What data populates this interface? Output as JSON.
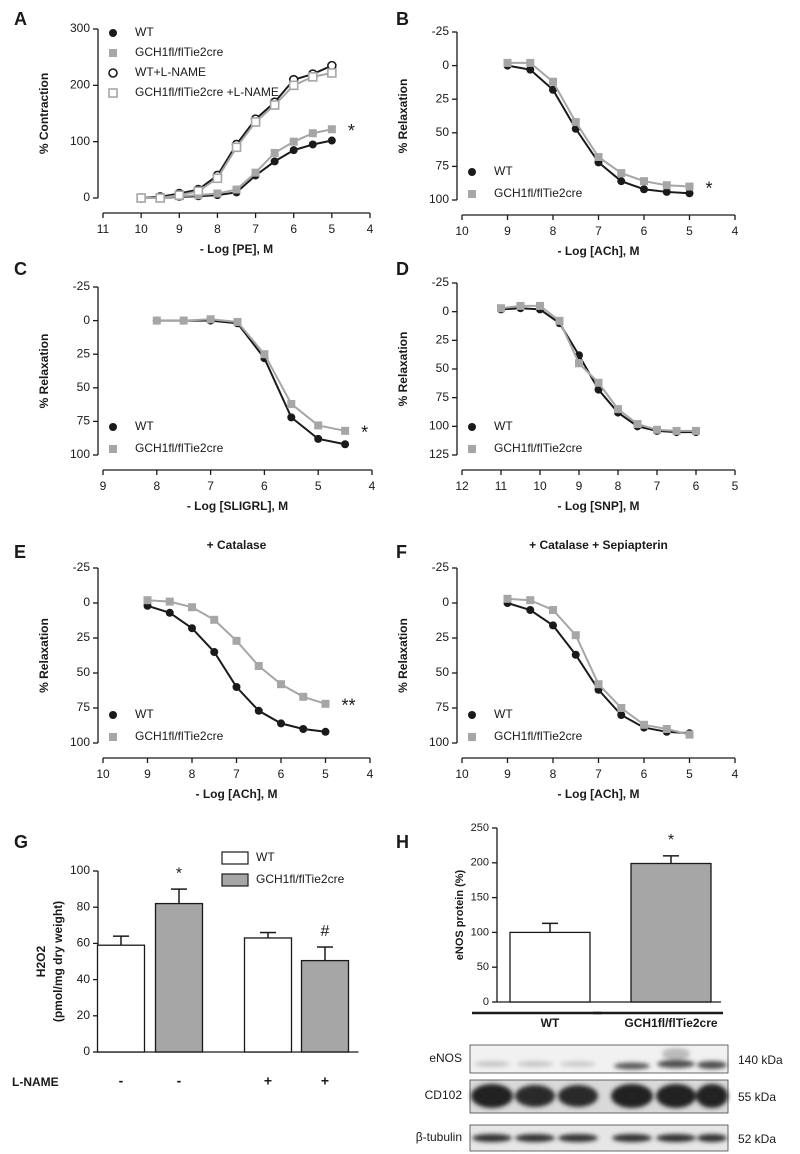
{
  "chart_data": [
    {
      "panel": "A",
      "type": "line",
      "xlabel": "- Log [PE], M",
      "ylabel": "% Contraction",
      "xlim": [
        11,
        4
      ],
      "xticks": [
        11,
        10,
        9,
        8,
        7,
        6,
        5,
        4
      ],
      "ylim": [
        0,
        300
      ],
      "yticks": [
        0,
        100,
        200,
        300
      ],
      "legend": "upper left",
      "annotation": "*",
      "x": [
        10,
        9.5,
        9,
        8.5,
        8,
        7.5,
        7,
        6.5,
        6,
        5.5,
        5
      ],
      "series": [
        {
          "name": "WT",
          "color": "#1a1a1a",
          "marker": "circle",
          "filled": true,
          "values": [
            0,
            0,
            2,
            3,
            5,
            10,
            40,
            65,
            85,
            95,
            102
          ]
        },
        {
          "name": "GCH1fl/flTie2cre",
          "color": "#a6a6a6",
          "marker": "square",
          "filled": true,
          "values": [
            0,
            0,
            3,
            5,
            8,
            15,
            45,
            80,
            100,
            115,
            122
          ]
        },
        {
          "name": "WT+L-NAME",
          "color": "#1a1a1a",
          "marker": "circle",
          "filled": false,
          "values": [
            0,
            2,
            8,
            15,
            40,
            95,
            140,
            170,
            210,
            220,
            235
          ]
        },
        {
          "name": "GCH1fl/flTie2cre +L-NAME",
          "color": "#a6a6a6",
          "marker": "square",
          "filled": false,
          "values": [
            0,
            0,
            5,
            12,
            35,
            90,
            135,
            165,
            200,
            215,
            222
          ]
        }
      ]
    },
    {
      "panel": "B",
      "type": "line",
      "xlabel": "- Log [ACh], M",
      "ylabel": "% Relaxation",
      "xlim": [
        10,
        4
      ],
      "xticks": [
        10,
        9,
        8,
        7,
        6,
        5,
        4
      ],
      "ylim": [
        100,
        -25
      ],
      "yticks": [
        -25,
        0,
        25,
        50,
        75,
        100
      ],
      "legend": "lower left",
      "annotation": "*",
      "x": [
        9,
        8.5,
        8,
        7.5,
        7,
        6.5,
        6,
        5.5,
        5
      ],
      "series": [
        {
          "name": "WT",
          "color": "#1a1a1a",
          "marker": "circle",
          "filled": true,
          "values": [
            0,
            3,
            18,
            47,
            72,
            86,
            92,
            94,
            95
          ]
        },
        {
          "name": "GCH1fl/flTie2cre",
          "color": "#a6a6a6",
          "marker": "square",
          "filled": true,
          "values": [
            -2,
            -2,
            12,
            42,
            68,
            80,
            86,
            89,
            90
          ]
        }
      ]
    },
    {
      "panel": "C",
      "type": "line",
      "xlabel": "- Log [SLIGRL], M",
      "ylabel": "% Relaxation",
      "xlim": [
        9,
        4
      ],
      "xticks": [
        9,
        8,
        7,
        6,
        5,
        4
      ],
      "ylim": [
        100,
        -25
      ],
      "yticks": [
        -25,
        0,
        25,
        50,
        75,
        100
      ],
      "legend": "lower left",
      "annotation": "*",
      "x": [
        8,
        7.5,
        7,
        6.5,
        6,
        5.5,
        5,
        4.5
      ],
      "series": [
        {
          "name": "WT",
          "color": "#1a1a1a",
          "marker": "circle",
          "filled": true,
          "values": [
            0,
            0,
            0,
            2,
            28,
            72,
            88,
            92
          ]
        },
        {
          "name": "GCH1fl/flTie2cre",
          "color": "#a6a6a6",
          "marker": "square",
          "filled": true,
          "values": [
            0,
            0,
            -1,
            1,
            25,
            62,
            78,
            82
          ]
        }
      ]
    },
    {
      "panel": "D",
      "type": "line",
      "xlabel": "- Log [SNP], M",
      "ylabel": "% Relaxation",
      "xlim": [
        12,
        5
      ],
      "xticks": [
        12,
        11,
        10,
        9,
        8,
        7,
        6,
        5
      ],
      "ylim": [
        125,
        -25
      ],
      "yticks": [
        -25,
        0,
        25,
        50,
        75,
        100,
        125
      ],
      "legend": "lower left",
      "x": [
        11,
        10.5,
        10,
        9.5,
        9,
        8.5,
        8,
        7.5,
        7,
        6.5,
        6
      ],
      "series": [
        {
          "name": "WT",
          "color": "#1a1a1a",
          "marker": "circle",
          "filled": true,
          "values": [
            -2,
            -3,
            -2,
            10,
            38,
            68,
            88,
            100,
            104,
            105,
            105
          ]
        },
        {
          "name": "GCH1fl/flTie2cre",
          "color": "#a6a6a6",
          "marker": "square",
          "filled": true,
          "values": [
            -3,
            -5,
            -5,
            8,
            45,
            62,
            85,
            98,
            103,
            104,
            104
          ]
        }
      ]
    },
    {
      "panel": "E",
      "type": "line",
      "title": "+ Catalase",
      "xlabel": "- Log [ACh], M",
      "ylabel": "% Relaxation",
      "xlim": [
        10,
        4
      ],
      "xticks": [
        10,
        9,
        8,
        7,
        6,
        5,
        4
      ],
      "ylim": [
        100,
        -25
      ],
      "yticks": [
        -25,
        0,
        25,
        50,
        75,
        100
      ],
      "legend": "lower left",
      "annotation": "**",
      "x": [
        9,
        8.5,
        8,
        7.5,
        7,
        6.5,
        6,
        5.5,
        5
      ],
      "series": [
        {
          "name": "WT",
          "color": "#1a1a1a",
          "marker": "circle",
          "filled": true,
          "values": [
            2,
            7,
            18,
            35,
            60,
            77,
            86,
            90,
            92
          ]
        },
        {
          "name": "GCH1fl/flTie2cre",
          "color": "#a6a6a6",
          "marker": "square",
          "filled": true,
          "values": [
            -2,
            -1,
            3,
            12,
            27,
            45,
            58,
            67,
            72
          ]
        }
      ]
    },
    {
      "panel": "F",
      "type": "line",
      "title": "+ Catalase + Sepiapterin",
      "xlabel": "- Log [ACh], M",
      "ylabel": "% Relaxation",
      "xlim": [
        10,
        4
      ],
      "xticks": [
        10,
        9,
        8,
        7,
        6,
        5,
        4
      ],
      "ylim": [
        100,
        -25
      ],
      "yticks": [
        -25,
        0,
        25,
        50,
        75,
        100
      ],
      "legend": "lower left",
      "x": [
        9,
        8.5,
        8,
        7.5,
        7,
        6.5,
        6,
        5.5,
        5
      ],
      "series": [
        {
          "name": "WT",
          "color": "#1a1a1a",
          "marker": "circle",
          "filled": true,
          "values": [
            0,
            5,
            16,
            37,
            62,
            80,
            89,
            92,
            93
          ]
        },
        {
          "name": "GCH1fl/flTie2cre",
          "color": "#a6a6a6",
          "marker": "square",
          "filled": true,
          "values": [
            -3,
            -2,
            5,
            23,
            58,
            75,
            87,
            90,
            94
          ]
        }
      ]
    },
    {
      "panel": "G",
      "type": "bar",
      "ylabel": [
        "H2O2",
        "(pmol/mg dry weight)"
      ],
      "xlabel": "L-NAME",
      "categories": [
        "-",
        "-",
        "+",
        "+"
      ],
      "ylim": [
        0,
        100
      ],
      "yticks": [
        0,
        20,
        40,
        60,
        80,
        100
      ],
      "legend": "upper right",
      "annotations": [
        null,
        "*",
        null,
        "#"
      ],
      "series": [
        {
          "name": "WT",
          "color": "#ffffff",
          "values": [
            59,
            null,
            63,
            null
          ],
          "errors": [
            5,
            null,
            3,
            null
          ]
        },
        {
          "name": "GCH1fl/flTie2cre",
          "color": "#a6a6a6",
          "values": [
            null,
            82,
            null,
            50.5
          ],
          "errors": [
            null,
            8,
            null,
            7.5
          ]
        }
      ]
    },
    {
      "panel": "H",
      "type": "bar",
      "ylabel": "eNOS protein (%)",
      "categories": [
        "WT",
        "GCH1fl/flTie2cre"
      ],
      "ylim": [
        0,
        250
      ],
      "yticks": [
        0,
        50,
        100,
        150,
        200,
        250
      ],
      "annotations": [
        null,
        "*"
      ],
      "values": [
        100,
        199
      ],
      "errors": [
        13,
        11
      ],
      "colors": [
        "#ffffff",
        "#a6a6a6"
      ]
    }
  ],
  "blot": {
    "rows": [
      {
        "label": "eNOS",
        "size": "140 kDa"
      },
      {
        "label": "CD102",
        "size": "55 kDa"
      },
      {
        "label": "β-tubulin",
        "size": "52 kDa"
      }
    ]
  }
}
